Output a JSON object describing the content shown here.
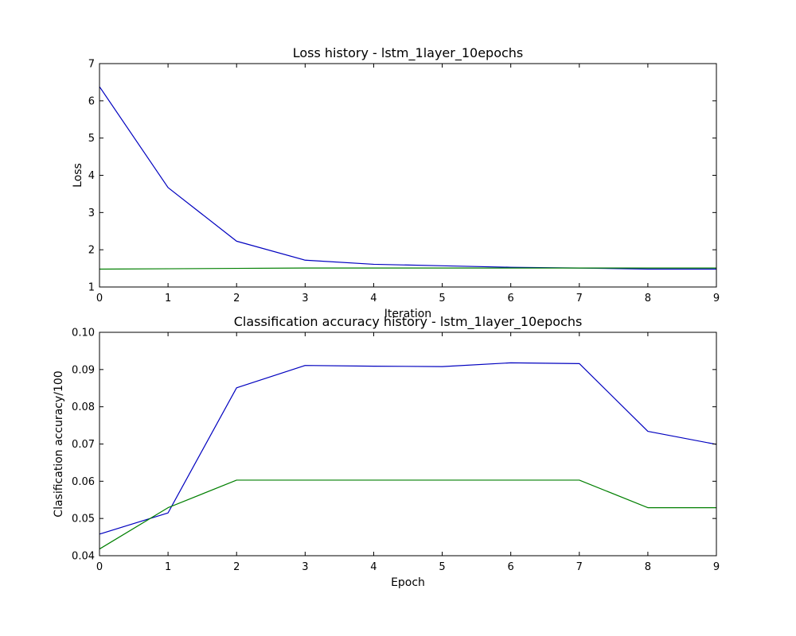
{
  "chart_data": [
    {
      "type": "line",
      "title": "Loss history - lstm_1layer_10epochs",
      "xlabel": "Iteration",
      "ylabel": "Loss",
      "xlim": [
        0,
        9
      ],
      "ylim": [
        1,
        7
      ],
      "xticks": [
        0,
        1,
        2,
        3,
        4,
        5,
        6,
        7,
        8,
        9
      ],
      "yticks": [
        1,
        2,
        3,
        4,
        5,
        6,
        7
      ],
      "grid": false,
      "x": [
        0,
        1,
        2,
        3,
        4,
        5,
        6,
        7,
        8,
        9
      ],
      "series": [
        {
          "color": "#0000bf",
          "values": [
            6.38,
            3.67,
            2.23,
            1.72,
            1.61,
            1.57,
            1.53,
            1.51,
            1.48,
            1.48
          ]
        },
        {
          "color": "#007f00",
          "values": [
            1.48,
            1.49,
            1.5,
            1.51,
            1.51,
            1.51,
            1.51,
            1.51,
            1.51,
            1.51
          ]
        }
      ]
    },
    {
      "type": "line",
      "title": "Classification accuracy history - lstm_1layer_10epochs",
      "xlabel": "Epoch",
      "ylabel": "Clasification accuracy/100",
      "xlim": [
        0,
        9
      ],
      "ylim": [
        0.04,
        0.1
      ],
      "xticks": [
        0,
        1,
        2,
        3,
        4,
        5,
        6,
        7,
        8,
        9
      ],
      "yticks": [
        "0.04",
        "0.05",
        "0.06",
        "0.07",
        "0.08",
        "0.09",
        "0.10"
      ],
      "grid": false,
      "x": [
        0,
        1,
        2,
        3,
        4,
        5,
        6,
        7,
        8,
        9
      ],
      "series": [
        {
          "color": "#0000bf",
          "values": [
            0.0458,
            0.0515,
            0.0851,
            0.0911,
            0.0909,
            0.0908,
            0.0918,
            0.0916,
            0.0734,
            0.0699
          ]
        },
        {
          "color": "#007f00",
          "values": [
            0.0418,
            0.0529,
            0.0603,
            0.0603,
            0.0603,
            0.0603,
            0.0603,
            0.0603,
            0.0529,
            0.0529
          ]
        }
      ]
    }
  ]
}
